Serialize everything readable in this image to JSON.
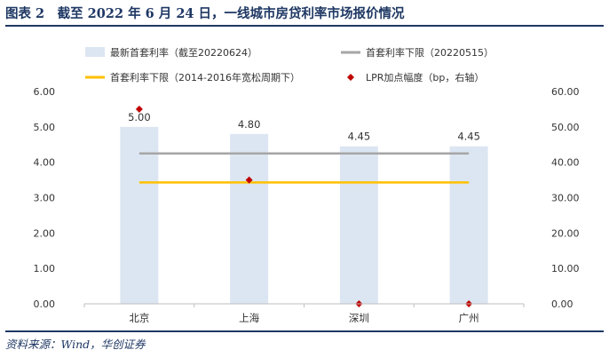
{
  "figure": {
    "title": "图表 2　截至 2022 年 6 月 24 日，一线城市房贷利率市场报价情况",
    "source": "资料来源：Wind，华创证券"
  },
  "legend": [
    {
      "key": "rate_latest",
      "label": "最新首套利率（截至20220624）"
    },
    {
      "key": "lower_limit_2022",
      "label": "首套利率下限（20220515）"
    },
    {
      "key": "lower_limit_2014",
      "label": "首套利率下限（2014-2016年宽松周期下）"
    },
    {
      "key": "lpr_spread",
      "label": "LPR加点幅度（bp，右轴）"
    }
  ],
  "chart_data": {
    "type": "bar",
    "categories": [
      "北京",
      "上海",
      "深圳",
      "广州"
    ],
    "series": [
      {
        "name": "最新首套利率（截至20220624）",
        "type": "bar",
        "axis": "left",
        "values": [
          5.0,
          4.8,
          4.45,
          4.45
        ],
        "color": "#dce6f2",
        "labels": [
          "5.00",
          "4.80",
          "4.45",
          "4.45"
        ]
      },
      {
        "name": "首套利率下限（20220515）",
        "type": "line",
        "axis": "left",
        "values": [
          4.25,
          4.25,
          4.25,
          4.25
        ],
        "color": "#a6a6a6"
      },
      {
        "name": "首套利率下限（2014-2016年宽松周期下）",
        "type": "line",
        "axis": "left",
        "values": [
          3.43,
          3.43,
          3.43,
          3.43
        ],
        "color": "#ffc000"
      },
      {
        "name": "LPR加点幅度（bp，右轴）",
        "type": "scatter",
        "axis": "right",
        "values": [
          55,
          35,
          0,
          0
        ],
        "color": "#c00000"
      }
    ],
    "y_left": {
      "min": 0,
      "max": 6,
      "ticks": [
        "0.00",
        "1.00",
        "2.00",
        "3.00",
        "4.00",
        "5.00",
        "6.00"
      ]
    },
    "y_right": {
      "min": 0,
      "max": 60,
      "ticks": [
        "0.00",
        "10.00",
        "20.00",
        "30.00",
        "40.00",
        "50.00",
        "60.00"
      ]
    },
    "grid": false,
    "legend_position": "top"
  }
}
